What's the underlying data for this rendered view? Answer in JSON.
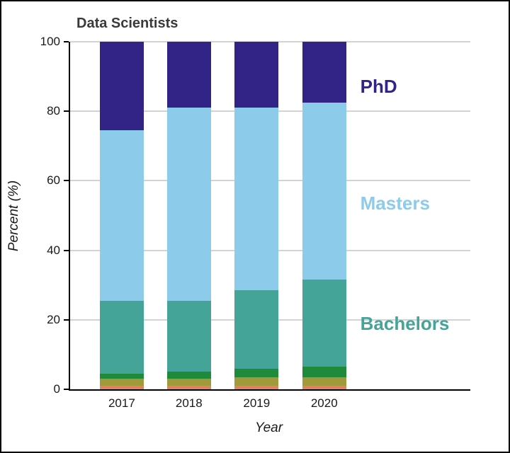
{
  "title": "Data Scientists",
  "xlabel": "Year",
  "ylabel": "Percent (%)",
  "chart_data": {
    "type": "bar",
    "stacked": true,
    "title": "Data Scientists",
    "xlabel": "Year",
    "ylabel": "Percent (%)",
    "categories": [
      "2017",
      "2018",
      "2019",
      "2020"
    ],
    "series": [
      {
        "name": "orange-segment",
        "color": "#e0835f",
        "values": [
          1,
          1,
          1,
          1
        ]
      },
      {
        "name": "olive-segment",
        "color": "#a19a3a",
        "values": [
          2,
          2,
          2.5,
          2.5
        ]
      },
      {
        "name": "green-segment",
        "color": "#1e8a3a",
        "values": [
          1.5,
          2,
          2.5,
          3
        ]
      },
      {
        "name": "Bachelors",
        "color": "#44a497",
        "values": [
          21,
          20.5,
          22.5,
          25
        ]
      },
      {
        "name": "Masters",
        "color": "#8dcbea",
        "values": [
          49,
          55.5,
          52.5,
          51
        ]
      },
      {
        "name": "PhD",
        "color": "#322487",
        "values": [
          25.5,
          19,
          19,
          17.5
        ]
      }
    ],
    "ylim": [
      0,
      100
    ],
    "yticks": [
      0,
      20,
      40,
      60,
      80,
      100
    ],
    "grid": true,
    "legend_position": "right-inside",
    "side_labels": [
      {
        "text": "PhD",
        "color": "#322487",
        "top_pct": 9.8,
        "left_pct": 72.5
      },
      {
        "text": "Masters",
        "color": "#8dcbea",
        "top_pct": 43.4,
        "left_pct": 72.5
      },
      {
        "text": "Bachelors",
        "color": "#44a497",
        "top_pct": 78.0,
        "left_pct": 72.5
      }
    ]
  }
}
